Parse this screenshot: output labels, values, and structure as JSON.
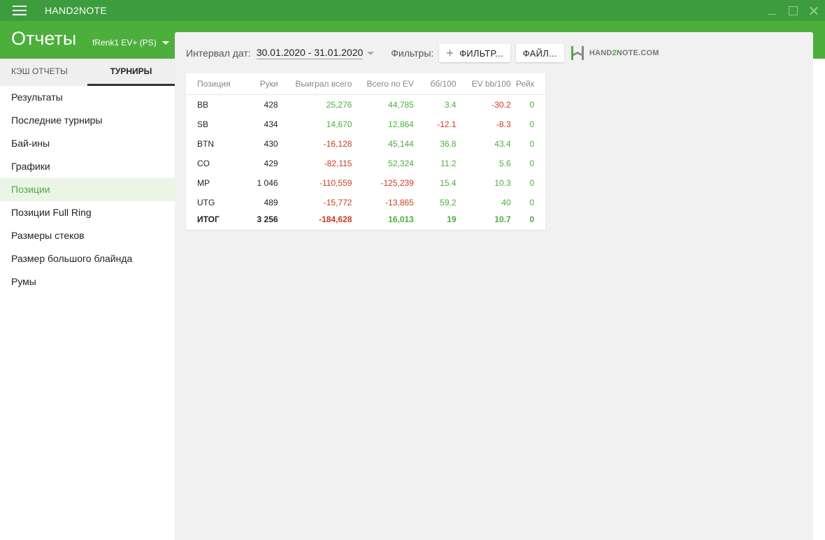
{
  "app": {
    "title": "HAND2NOTE"
  },
  "header": {
    "title": "Отчеты",
    "player": "fRenk1 EV+ (PS)"
  },
  "sidebar": {
    "tabs": [
      {
        "label": "КЭШ ОТЧЕТЫ",
        "active": false
      },
      {
        "label": "ТУРНИРЫ",
        "active": true
      }
    ],
    "items": [
      {
        "label": "Результаты"
      },
      {
        "label": "Последние турниры"
      },
      {
        "label": "Бай-ины"
      },
      {
        "label": "Графики"
      },
      {
        "label": "Позиции",
        "active": true
      },
      {
        "label": "Позиции Full Ring"
      },
      {
        "label": "Размеры стеков"
      },
      {
        "label": "Размер большого блайнда"
      },
      {
        "label": "Румы"
      }
    ]
  },
  "toolbar": {
    "interval_label": "Интервал дат:",
    "interval_value": "30.01.2020 - 31.01.2020",
    "filters_label": "Фильтры:",
    "filter_button": "ФИЛЬТР...",
    "file_button": "ФАЙЛ...",
    "brand_prefix": "HAND",
    "brand_two": "2",
    "brand_suffix": "NOTE.COM"
  },
  "table": {
    "headers": [
      "Позиция",
      "Руки",
      "Выиграл всего",
      "Всего по EV",
      "бб/100",
      "EV bb/100",
      "Рейк"
    ],
    "rows": [
      [
        "BB",
        "428",
        "25,276",
        "44,785",
        "3.4",
        "-30.2",
        "0"
      ],
      [
        "SB",
        "434",
        "14,670",
        "12,864",
        "-12.1",
        "-8.3",
        "0"
      ],
      [
        "BTN",
        "430",
        "-16,128",
        "45,144",
        "36.8",
        "43.4",
        "0"
      ],
      [
        "CO",
        "429",
        "-82,115",
        "52,324",
        "11.2",
        "5.6",
        "0"
      ],
      [
        "MP",
        "1 046",
        "-110,559",
        "-125,239",
        "15.4",
        "10.3",
        "0"
      ],
      [
        "UTG",
        "489",
        "-15,772",
        "-13,865",
        "59.2",
        "40",
        "0"
      ]
    ],
    "total": [
      "ИТОГ",
      "3 256",
      "-184,628",
      "16,013",
      "19",
      "10.7",
      "0"
    ]
  },
  "colors": {
    "accent": "#4caf3c",
    "titlebar": "#3d9c3d",
    "negative": "#cc3a1f"
  }
}
